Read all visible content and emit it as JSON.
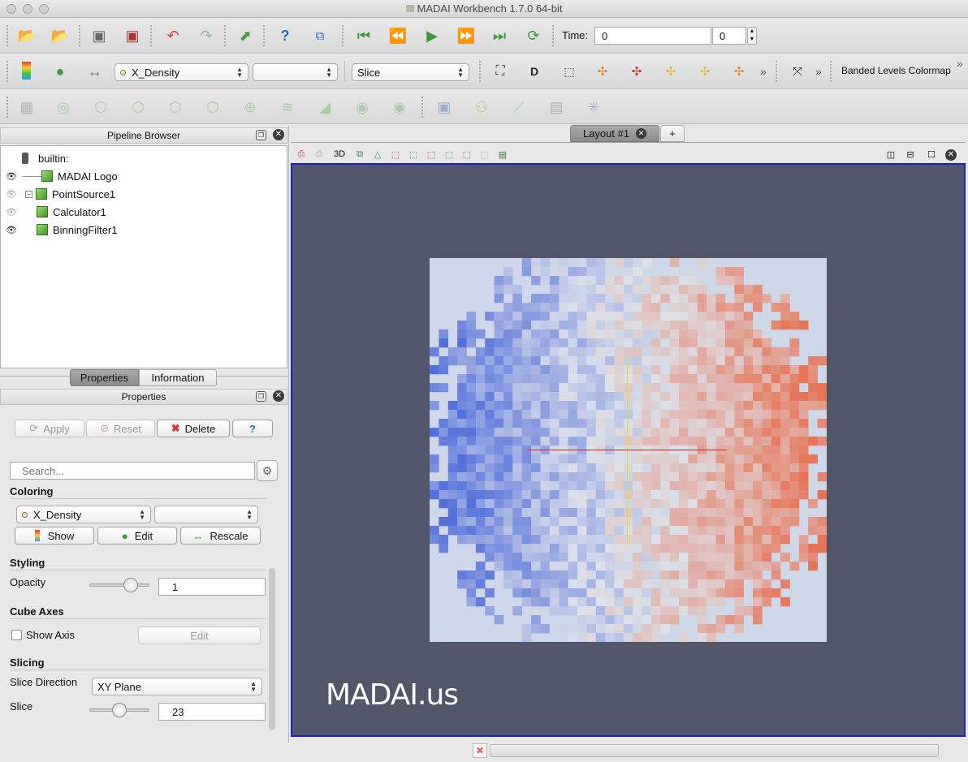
{
  "window": {
    "title": "MADAI Workbench 1.7.0 64-bit"
  },
  "toolbar_main": {
    "time_label": "Time:",
    "time_value": "0",
    "time_index": "0"
  },
  "toolbar_display": {
    "color_array": "X_Density",
    "color_component": "",
    "representation": "Slice",
    "colormap_preset": "Banded Levels Colormap",
    "three_d_label": "3D"
  },
  "pipeline": {
    "title": "Pipeline Browser",
    "root": "builtin:",
    "items": [
      {
        "label": "MADAI Logo",
        "visible": true
      },
      {
        "label": "PointSource1",
        "visible": false
      },
      {
        "label": "Calculator1",
        "visible": false
      },
      {
        "label": "BinningFilter1",
        "visible": true
      }
    ]
  },
  "tabs": {
    "properties": "Properties",
    "information": "Information"
  },
  "properties": {
    "title": "Properties",
    "apply": "Apply",
    "reset": "Reset",
    "delete": "Delete",
    "help": "?",
    "search_placeholder": "Search...",
    "coloring": {
      "header": "Coloring",
      "array": "X_Density",
      "component": "",
      "show": "Show",
      "edit": "Edit",
      "rescale": "Rescale"
    },
    "styling": {
      "header": "Styling",
      "opacity_label": "Opacity",
      "opacity_value": "1",
      "opacity_level": 0.75
    },
    "cube_axes": {
      "header": "Cube Axes",
      "show_axis": "Show Axis",
      "edit": "Edit"
    },
    "slicing": {
      "header": "Slicing",
      "direction_label": "Slice Direction",
      "direction_value": "XY Plane",
      "slice_label": "Slice",
      "slice_value": "23",
      "slice_level": 0.5
    }
  },
  "layout": {
    "tab_label": "Layout #1",
    "add_tab": "+"
  },
  "viewport": {
    "logo_text": "MADAI.us",
    "background": "#525669",
    "border": "#1a1cdc"
  },
  "colors": {
    "cool": "#3c5bd8",
    "neutral": "#dde2ea",
    "warm": "#e8603c",
    "panel_bg": "#e8e8e8"
  }
}
